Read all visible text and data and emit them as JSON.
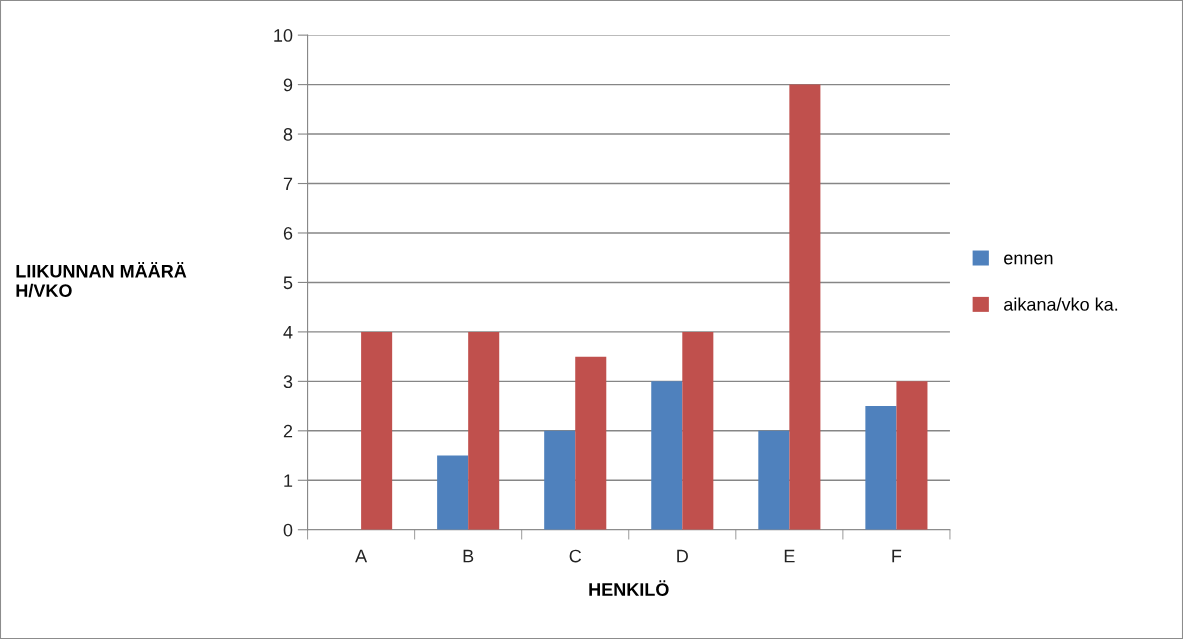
{
  "chart_data": {
    "type": "bar",
    "xlabel": "HENKILÖ",
    "ylabel": "LIIKUNNAN MÄÄRÄ\nH/VKO",
    "categories": [
      "A",
      "B",
      "C",
      "D",
      "E",
      "F"
    ],
    "series": [
      {
        "name": "ennen",
        "color": "#4f81bd",
        "values": [
          0,
          1.5,
          2,
          3,
          2,
          2.5
        ]
      },
      {
        "name": "aikana/vko ka.",
        "color": "#c0504d",
        "values": [
          4,
          4,
          3.5,
          4,
          9,
          3
        ]
      }
    ],
    "ylim": [
      0,
      10
    ],
    "yticks": [
      0,
      1,
      2,
      3,
      4,
      5,
      6,
      7,
      8,
      9,
      10
    ],
    "grid": "y",
    "legend": "right"
  }
}
